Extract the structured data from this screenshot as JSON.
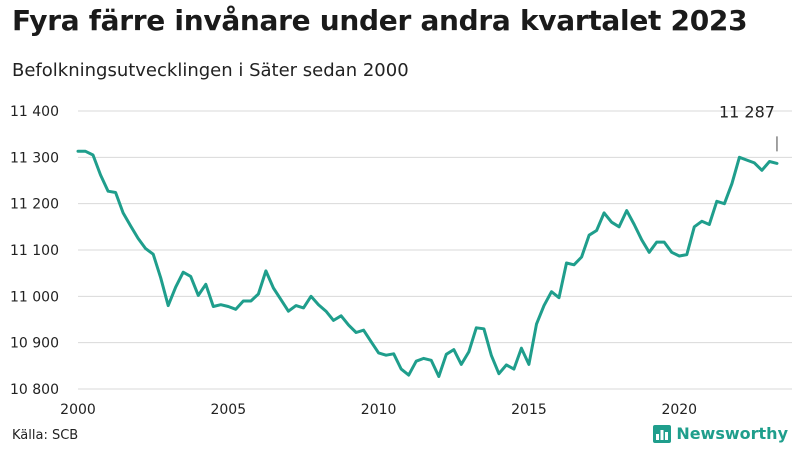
{
  "header": {
    "title": "Fyra färre invånare under andra kvartalet 2023",
    "subtitle": "Befolkningsutvecklingen i Säter sedan 2000"
  },
  "footer": {
    "source": "Källa: SCB",
    "brand": "Newsworthy",
    "brand_icon": "bar-chart-logo-icon"
  },
  "colors": {
    "line": "#1f9e8c",
    "grid": "#d9d9d9",
    "brand": "#1f9e8c"
  },
  "chart_data": {
    "type": "line",
    "title": "Fyra färre invånare under andra kvartalet 2023",
    "subtitle": "Befolkningsutvecklingen i Säter sedan 2000",
    "xlabel": "",
    "ylabel": "",
    "grid": true,
    "legend": "none",
    "xlim": [
      2000,
      2023.75
    ],
    "ylim": [
      10800,
      11400
    ],
    "x_ticks": [
      2000,
      2005,
      2010,
      2015,
      2020
    ],
    "x_tick_labels": [
      "2000",
      "2005",
      "2010",
      "2015",
      "2020"
    ],
    "y_ticks": [
      10800,
      10900,
      11000,
      11100,
      11200,
      11300,
      11400
    ],
    "y_tick_labels": [
      "10 800",
      "10 900",
      "11 000",
      "11 100",
      "11 200",
      "11 300",
      "11 400"
    ],
    "end_label": "11 287",
    "series": [
      {
        "x": [
          2000,
          2000.25,
          2000.5,
          2000.75,
          2001,
          2001.25,
          2001.5,
          2001.75,
          2002,
          2002.25,
          2002.5,
          2002.75,
          2003,
          2003.25,
          2003.5,
          2003.75,
          2004,
          2004.25,
          2004.5,
          2004.75,
          2005,
          2005.25,
          2005.5,
          2005.75,
          2006,
          2006.25,
          2006.5,
          2006.75,
          2007,
          2007.25,
          2007.5,
          2007.75,
          2008,
          2008.25,
          2008.5,
          2008.75,
          2009,
          2009.25,
          2009.5,
          2009.75,
          2010,
          2010.25,
          2010.5,
          2010.75,
          2011,
          2011.25,
          2011.5,
          2011.75,
          2012,
          2012.25,
          2012.5,
          2012.75,
          2013,
          2013.25,
          2013.5,
          2013.75,
          2014,
          2014.25,
          2014.5,
          2014.75,
          2015,
          2015.25,
          2015.5,
          2015.75,
          2016,
          2016.25,
          2016.5,
          2016.75,
          2017,
          2017.25,
          2017.5,
          2017.75,
          2018,
          2018.25,
          2018.5,
          2018.75,
          2019,
          2019.25,
          2019.5,
          2019.75,
          2020,
          2020.25,
          2020.5,
          2020.75,
          2021,
          2021.25,
          2021.5,
          2021.75,
          2022,
          2022.25,
          2022.5,
          2022.75,
          2023,
          2023.25
        ],
        "values": [
          11313,
          11313,
          11305,
          11262,
          11227,
          11224,
          11180,
          11152,
          11125,
          11103,
          11091,
          11040,
          10980,
          11020,
          11052,
          11043,
          11002,
          11026,
          10978,
          10982,
          10978,
          10972,
          10990,
          10990,
          11005,
          11055,
          11018,
          10993,
          10968,
          10980,
          10975,
          11000,
          10982,
          10968,
          10948,
          10958,
          10938,
          10922,
          10927,
          10902,
          10878,
          10873,
          10876,
          10843,
          10830,
          10860,
          10866,
          10862,
          10827,
          10875,
          10885,
          10853,
          10880,
          10932,
          10930,
          10872,
          10833,
          10852,
          10843,
          10888,
          10853,
          10940,
          10980,
          11010,
          10997,
          11072,
          11068,
          11085,
          11132,
          11142,
          11180,
          11160,
          11150,
          11185,
          11155,
          11122,
          11095,
          11117,
          11117,
          11095,
          11087,
          11090,
          11150,
          11162,
          11155,
          11205,
          11200,
          11243,
          11300,
          11294,
          11288,
          11272,
          11291,
          11287
        ]
      }
    ]
  }
}
